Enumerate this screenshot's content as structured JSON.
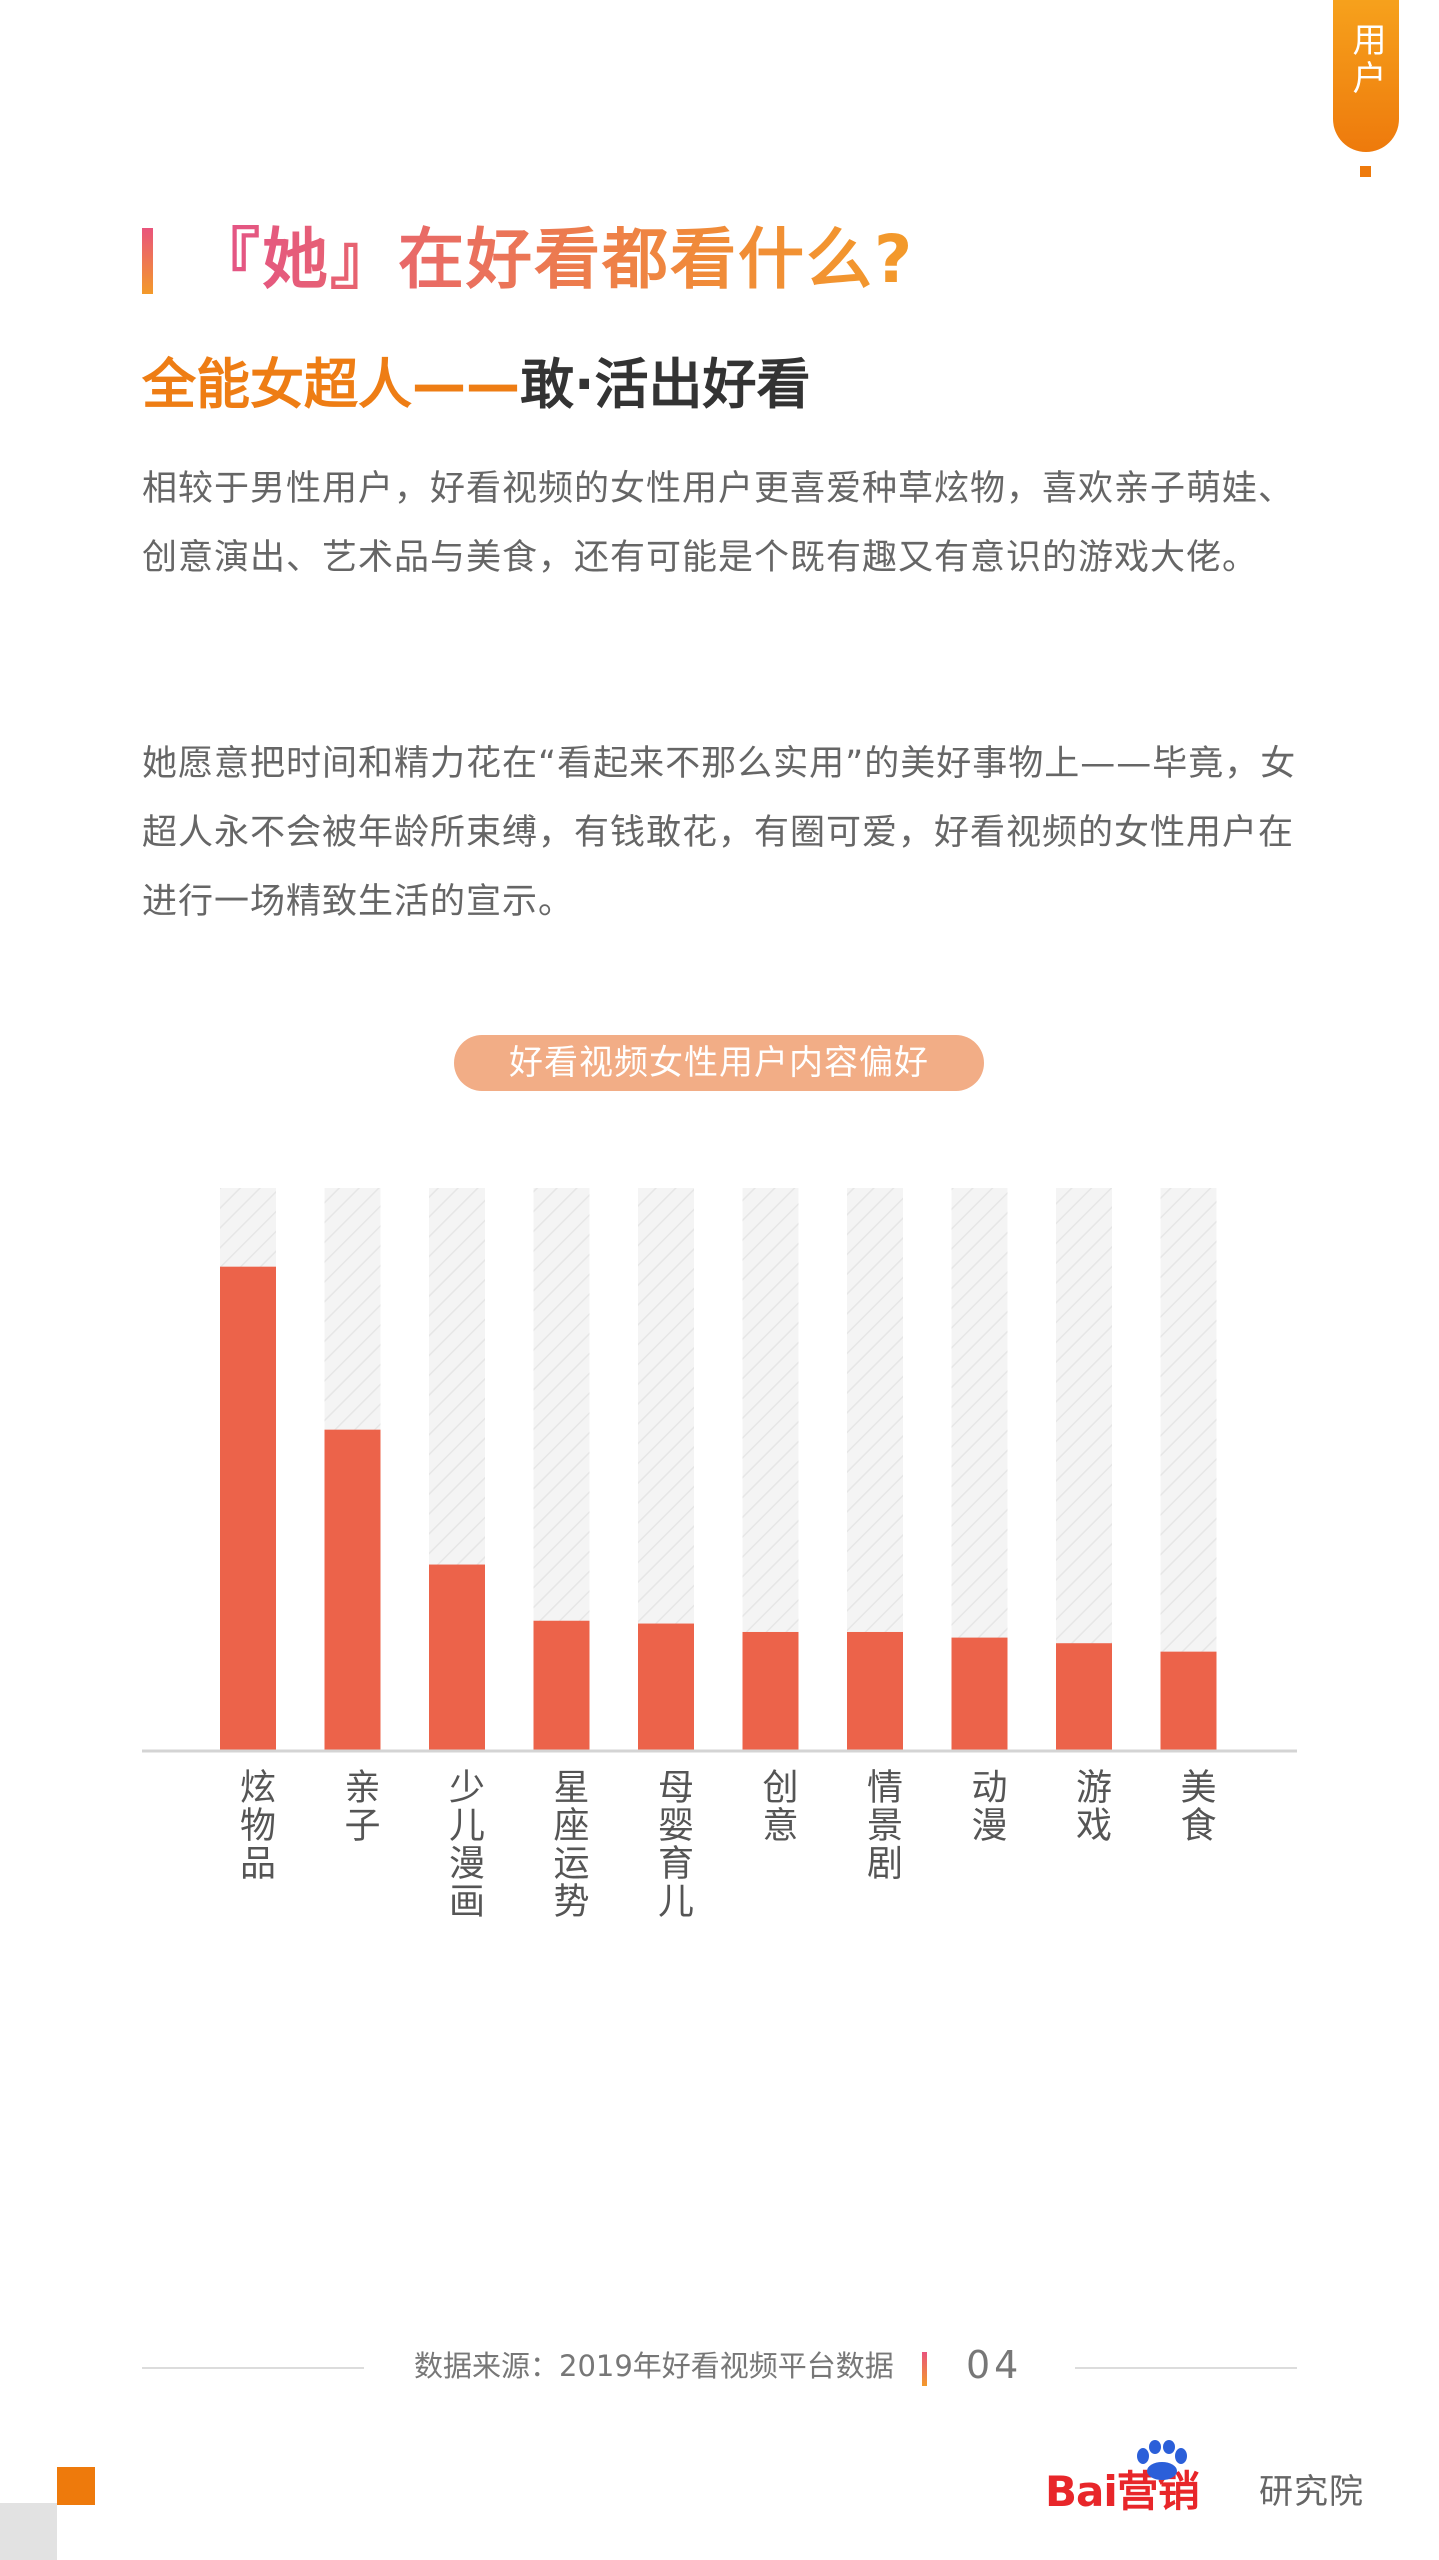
{
  "side_tab": {
    "label": "用户"
  },
  "title": "『她』在好看都看什么?",
  "subtitle": {
    "highlight": "全能女超人——",
    "rest": "敢·活出好看"
  },
  "paragraphs": [
    "相较于男性用户，好看视频的女性用户更喜爱种草炫物，喜欢亲子萌娃、创意演出、艺术品与美食，还有可能是个既有趣又有意识的游戏大佬。",
    "她愿意把时间和精力花在“看起来不那么实用”的美好事物上——毕竟，女超人永不会被年龄所束缚，有钱敢花，有圈可爱，好看视频的女性用户在进行一场精致生活的宣示。"
  ],
  "chart_data": {
    "type": "bar",
    "title": "好看视频女性用户内容偏好",
    "categories": [
      "炫物品",
      "亲子",
      "少儿漫画",
      "星座运势",
      "母婴育儿",
      "创意",
      "情景剧",
      "动漫",
      "游戏",
      "美食"
    ],
    "values": [
      86,
      57,
      33,
      23,
      22.5,
      21,
      21,
      20,
      19,
      17.5
    ],
    "ylim": [
      0,
      100
    ],
    "xlabel": "",
    "ylabel": "",
    "grid": false,
    "colors": {
      "bar": "#ec634a",
      "track": "#f3f3f3",
      "axis": "#d4d4d4"
    }
  },
  "footer": {
    "source": "数据来源：2019年好看视频平台数据",
    "page": "04"
  },
  "logo": {
    "brand": "Bai营销",
    "sub": "研究院"
  }
}
